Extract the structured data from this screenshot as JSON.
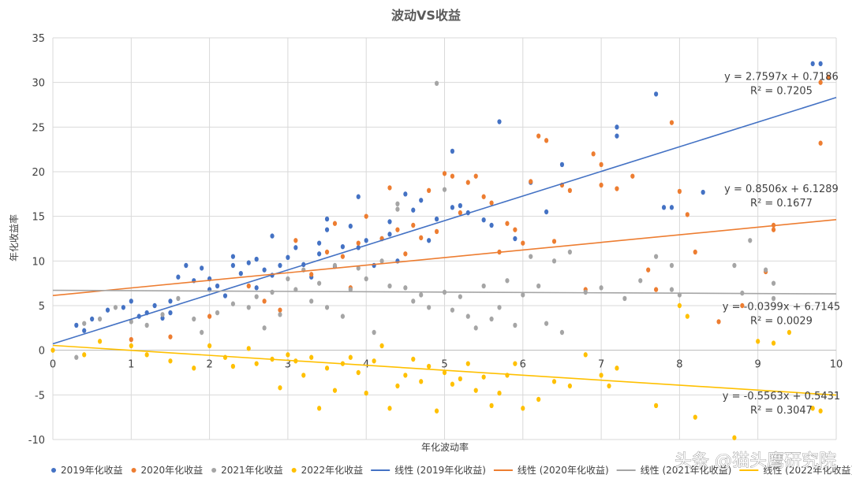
{
  "chart_data": {
    "type": "scatter",
    "title": "波动VS收益",
    "xlabel": "年化波动率",
    "ylabel": "年化收益率",
    "xlim": [
      0,
      10
    ],
    "ylim": [
      -10,
      35
    ],
    "xticks": [
      0,
      1,
      2,
      3,
      4,
      5,
      6,
      7,
      8,
      9,
      10
    ],
    "yticks": [
      -10,
      -5,
      0,
      5,
      10,
      15,
      20,
      25,
      30,
      35
    ],
    "grid": true,
    "legend_position": "bottom",
    "series": [
      {
        "name": "2019年化收益",
        "color": "#4472C4",
        "points": [
          [
            0.3,
            2.8
          ],
          [
            0.4,
            2.2
          ],
          [
            0.5,
            3.5
          ],
          [
            0.7,
            4.5
          ],
          [
            0.9,
            4.8
          ],
          [
            1.0,
            5.5
          ],
          [
            1.1,
            3.8
          ],
          [
            1.2,
            4.2
          ],
          [
            1.3,
            5.0
          ],
          [
            1.4,
            3.6
          ],
          [
            1.5,
            4.2
          ],
          [
            1.5,
            5.5
          ],
          [
            1.6,
            8.2
          ],
          [
            1.7,
            9.5
          ],
          [
            1.8,
            7.8
          ],
          [
            1.9,
            9.2
          ],
          [
            2.0,
            6.8
          ],
          [
            2.0,
            8.0
          ],
          [
            2.1,
            7.2
          ],
          [
            2.2,
            6.1
          ],
          [
            2.3,
            9.5
          ],
          [
            2.3,
            10.5
          ],
          [
            2.4,
            8.6
          ],
          [
            2.5,
            9.8
          ],
          [
            2.6,
            7.0
          ],
          [
            2.6,
            10.2
          ],
          [
            2.7,
            9.0
          ],
          [
            2.8,
            8.4
          ],
          [
            2.8,
            12.8
          ],
          [
            2.9,
            9.5
          ],
          [
            3.0,
            10.4
          ],
          [
            3.1,
            11.5
          ],
          [
            3.2,
            9.6
          ],
          [
            3.3,
            8.2
          ],
          [
            3.4,
            10.8
          ],
          [
            3.4,
            12.0
          ],
          [
            3.5,
            13.5
          ],
          [
            3.5,
            14.7
          ],
          [
            3.6,
            9.4
          ],
          [
            3.7,
            11.6
          ],
          [
            3.8,
            13.9
          ],
          [
            3.9,
            17.2
          ],
          [
            3.9,
            11.5
          ],
          [
            4.0,
            12.3
          ],
          [
            4.1,
            9.5
          ],
          [
            4.2,
            12.5
          ],
          [
            4.3,
            13.0
          ],
          [
            4.3,
            14.4
          ],
          [
            4.4,
            10.0
          ],
          [
            4.5,
            17.5
          ],
          [
            4.6,
            15.7
          ],
          [
            4.7,
            16.8
          ],
          [
            4.8,
            12.3
          ],
          [
            4.9,
            14.7
          ],
          [
            5.1,
            22.3
          ],
          [
            5.1,
            16.0
          ],
          [
            5.2,
            16.2
          ],
          [
            5.3,
            15.4
          ],
          [
            5.5,
            14.6
          ],
          [
            5.6,
            14.0
          ],
          [
            5.7,
            25.6
          ],
          [
            5.9,
            12.5
          ],
          [
            6.1,
            18.8
          ],
          [
            6.3,
            15.5
          ],
          [
            6.5,
            20.8
          ],
          [
            7.2,
            25.0
          ],
          [
            7.2,
            24.0
          ],
          [
            7.7,
            28.7
          ],
          [
            7.8,
            16.0
          ],
          [
            7.9,
            16.0
          ],
          [
            8.3,
            17.7
          ],
          [
            9.7,
            32.1
          ],
          [
            9.8,
            32.1
          ]
        ]
      },
      {
        "name": "2020年化收益",
        "color": "#ED7D31",
        "points": [
          [
            1.0,
            1.2
          ],
          [
            1.5,
            1.5
          ],
          [
            2.0,
            3.8
          ],
          [
            2.5,
            7.2
          ],
          [
            2.7,
            5.5
          ],
          [
            2.9,
            4.5
          ],
          [
            3.1,
            12.3
          ],
          [
            3.3,
            8.5
          ],
          [
            3.5,
            11.0
          ],
          [
            3.6,
            14.2
          ],
          [
            3.7,
            10.5
          ],
          [
            3.8,
            7.0
          ],
          [
            3.9,
            12.0
          ],
          [
            4.0,
            15.0
          ],
          [
            4.2,
            12.5
          ],
          [
            4.3,
            18.2
          ],
          [
            4.4,
            13.5
          ],
          [
            4.5,
            10.8
          ],
          [
            4.6,
            14.0
          ],
          [
            4.7,
            12.6
          ],
          [
            4.8,
            17.9
          ],
          [
            4.9,
            13.3
          ],
          [
            5.0,
            19.8
          ],
          [
            5.1,
            19.5
          ],
          [
            5.2,
            15.4
          ],
          [
            5.3,
            18.8
          ],
          [
            5.4,
            19.5
          ],
          [
            5.5,
            17.2
          ],
          [
            5.6,
            16.5
          ],
          [
            5.7,
            11.0
          ],
          [
            5.8,
            14.2
          ],
          [
            5.9,
            13.5
          ],
          [
            6.0,
            12.0
          ],
          [
            6.1,
            18.9
          ],
          [
            6.2,
            24.0
          ],
          [
            6.3,
            23.5
          ],
          [
            6.4,
            12.2
          ],
          [
            6.5,
            18.5
          ],
          [
            6.6,
            17.9
          ],
          [
            6.8,
            6.8
          ],
          [
            6.9,
            22.0
          ],
          [
            7.0,
            20.8
          ],
          [
            7.0,
            18.5
          ],
          [
            7.2,
            18.1
          ],
          [
            7.4,
            19.5
          ],
          [
            7.6,
            9.0
          ],
          [
            7.7,
            6.8
          ],
          [
            7.9,
            25.5
          ],
          [
            8.0,
            17.8
          ],
          [
            8.1,
            15.2
          ],
          [
            8.2,
            11.0
          ],
          [
            8.5,
            3.2
          ],
          [
            8.8,
            5.0
          ],
          [
            9.1,
            8.8
          ],
          [
            9.2,
            14.0
          ],
          [
            9.2,
            13.5
          ],
          [
            9.8,
            23.2
          ],
          [
            9.8,
            30.0
          ],
          [
            9.9,
            30.6
          ]
        ]
      },
      {
        "name": "2021年化收益",
        "color": "#A5A5A5",
        "points": [
          [
            0.3,
            -0.8
          ],
          [
            0.4,
            3.0
          ],
          [
            0.6,
            3.5
          ],
          [
            0.8,
            4.8
          ],
          [
            1.0,
            3.2
          ],
          [
            1.2,
            2.8
          ],
          [
            1.4,
            4.0
          ],
          [
            1.6,
            5.8
          ],
          [
            1.8,
            3.5
          ],
          [
            1.9,
            2.0
          ],
          [
            2.1,
            4.2
          ],
          [
            2.3,
            5.2
          ],
          [
            2.5,
            4.8
          ],
          [
            2.6,
            6.0
          ],
          [
            2.7,
            2.5
          ],
          [
            2.8,
            6.5
          ],
          [
            2.9,
            4.0
          ],
          [
            3.0,
            8.0
          ],
          [
            3.1,
            6.8
          ],
          [
            3.2,
            9.0
          ],
          [
            3.3,
            5.5
          ],
          [
            3.4,
            7.5
          ],
          [
            3.5,
            4.8
          ],
          [
            3.6,
            9.5
          ],
          [
            3.7,
            3.8
          ],
          [
            3.8,
            6.8
          ],
          [
            3.9,
            9.2
          ],
          [
            4.0,
            8.0
          ],
          [
            4.1,
            2.0
          ],
          [
            4.2,
            10.0
          ],
          [
            4.3,
            7.2
          ],
          [
            4.4,
            15.8
          ],
          [
            4.4,
            16.4
          ],
          [
            4.5,
            7.0
          ],
          [
            4.6,
            5.5
          ],
          [
            4.7,
            6.2
          ],
          [
            4.8,
            4.8
          ],
          [
            4.9,
            29.9
          ],
          [
            5.0,
            18.0
          ],
          [
            5.0,
            6.5
          ],
          [
            5.1,
            4.5
          ],
          [
            5.2,
            6.0
          ],
          [
            5.3,
            3.8
          ],
          [
            5.4,
            2.5
          ],
          [
            5.5,
            7.2
          ],
          [
            5.6,
            3.5
          ],
          [
            5.7,
            4.8
          ],
          [
            5.8,
            7.8
          ],
          [
            5.9,
            2.8
          ],
          [
            6.0,
            6.2
          ],
          [
            6.1,
            10.5
          ],
          [
            6.2,
            7.2
          ],
          [
            6.3,
            3.0
          ],
          [
            6.4,
            10.0
          ],
          [
            6.5,
            2.0
          ],
          [
            6.6,
            11.0
          ],
          [
            6.8,
            6.5
          ],
          [
            7.0,
            7.0
          ],
          [
            7.3,
            5.8
          ],
          [
            7.5,
            7.8
          ],
          [
            7.7,
            10.5
          ],
          [
            7.9,
            9.5
          ],
          [
            7.9,
            6.8
          ],
          [
            8.0,
            6.2
          ],
          [
            8.7,
            9.5
          ],
          [
            8.8,
            6.4
          ],
          [
            8.9,
            12.3
          ],
          [
            9.1,
            9.0
          ],
          [
            9.2,
            7.5
          ],
          [
            9.2,
            5.8
          ]
        ]
      },
      {
        "name": "2022年化收益",
        "color": "#FFC000",
        "points": [
          [
            0.0,
            0.0
          ],
          [
            0.4,
            -0.5
          ],
          [
            0.6,
            1.0
          ],
          [
            1.0,
            0.5
          ],
          [
            1.2,
            -0.5
          ],
          [
            1.5,
            -1.2
          ],
          [
            1.8,
            -2.0
          ],
          [
            2.0,
            0.5
          ],
          [
            2.2,
            -0.8
          ],
          [
            2.3,
            -1.8
          ],
          [
            2.5,
            0.2
          ],
          [
            2.6,
            -1.5
          ],
          [
            2.8,
            -1.0
          ],
          [
            2.9,
            -4.2
          ],
          [
            3.0,
            -0.5
          ],
          [
            3.1,
            -1.2
          ],
          [
            3.2,
            -2.8
          ],
          [
            3.3,
            -0.8
          ],
          [
            3.4,
            -6.5
          ],
          [
            3.5,
            -2.0
          ],
          [
            3.6,
            -4.5
          ],
          [
            3.7,
            -1.5
          ],
          [
            3.8,
            -0.8
          ],
          [
            3.9,
            -2.5
          ],
          [
            4.0,
            -4.8
          ],
          [
            4.1,
            -1.2
          ],
          [
            4.2,
            0.5
          ],
          [
            4.3,
            -6.5
          ],
          [
            4.4,
            -4.0
          ],
          [
            4.5,
            -2.8
          ],
          [
            4.6,
            -1.0
          ],
          [
            4.7,
            -3.5
          ],
          [
            4.8,
            -1.8
          ],
          [
            4.9,
            -6.8
          ],
          [
            5.0,
            -2.5
          ],
          [
            5.1,
            -3.8
          ],
          [
            5.2,
            -3.2
          ],
          [
            5.3,
            -1.5
          ],
          [
            5.4,
            -4.5
          ],
          [
            5.5,
            -3.0
          ],
          [
            5.6,
            -6.2
          ],
          [
            5.7,
            -4.8
          ],
          [
            5.8,
            -2.8
          ],
          [
            5.9,
            -1.5
          ],
          [
            6.0,
            -6.5
          ],
          [
            6.2,
            -5.5
          ],
          [
            6.4,
            -3.5
          ],
          [
            6.6,
            -4.0
          ],
          [
            6.8,
            -0.5
          ],
          [
            7.0,
            -2.8
          ],
          [
            7.1,
            -4.0
          ],
          [
            7.2,
            -2.0
          ],
          [
            7.7,
            -6.2
          ],
          [
            8.0,
            5.0
          ],
          [
            8.1,
            3.8
          ],
          [
            8.2,
            -7.5
          ],
          [
            8.7,
            -9.8
          ],
          [
            9.0,
            1.0
          ],
          [
            9.2,
            0.8
          ],
          [
            9.4,
            2.0
          ],
          [
            9.7,
            -6.5
          ],
          [
            9.8,
            -6.8
          ]
        ]
      }
    ],
    "trendlines": [
      {
        "name": "线性 (2019年化收益)",
        "color": "#4472C4",
        "slope": 2.7597,
        "intercept": 0.7186,
        "equation": "y = 2.7597x + 0.7186",
        "r2": "R² = 0.7205",
        "label_at": [
          9.3,
          30.3
        ]
      },
      {
        "name": "线性 (2020年化收益)",
        "color": "#ED7D31",
        "slope": 0.8506,
        "intercept": 6.1289,
        "equation": "y = 0.8506x + 6.1289",
        "r2": "R² = 0.1677",
        "label_at": [
          9.3,
          17.7
        ]
      },
      {
        "name": "线性 (2021年化收益)",
        "color": "#A5A5A5",
        "slope": -0.0399,
        "intercept": 6.7145,
        "equation": "y = -0.0399x + 6.7145",
        "r2": "R² = 0.0029",
        "label_at": [
          9.3,
          4.5
        ]
      },
      {
        "name": "线性 (2022年化收益)",
        "color": "#FFC000",
        "slope": -0.5563,
        "intercept": 0.5431,
        "equation": "y = -0.5563x + 0.5431",
        "r2": "R² = 0.3047",
        "label_at": [
          9.3,
          -5.5
        ]
      }
    ]
  },
  "watermark": "头条 @猫头鹰研究院"
}
